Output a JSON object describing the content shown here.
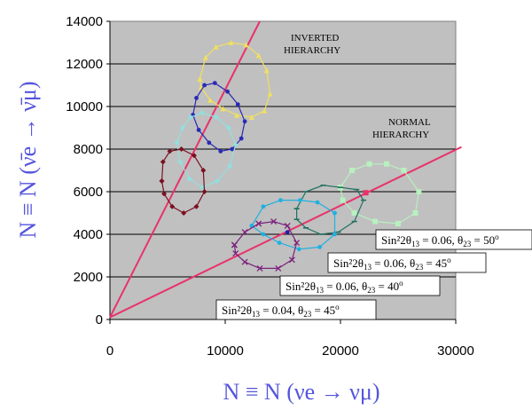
{
  "chart_data": {
    "type": "scatter",
    "xlim": [
      0,
      30000
    ],
    "ylim": [
      0,
      14000
    ],
    "x_ticks": [
      0,
      10000,
      20000,
      30000
    ],
    "y_ticks": [
      0,
      2000,
      4000,
      6000,
      8000,
      10000,
      12000,
      14000
    ],
    "grid": true,
    "plot_background": "#c0c0c0",
    "xlabel": "N ≡ N (νe → νμ)",
    "ylabel": "N ≡ N (ν̄e → ν̄μ)",
    "annotations": {
      "inverted": [
        "INVERTED",
        "HIERARCHY"
      ],
      "normal": [
        "NORMAL",
        "HIERARCHY"
      ]
    },
    "hierarchy_lines": [
      {
        "name": "inverted",
        "color": "#e8336a",
        "points": [
          [
            0,
            100
          ],
          [
            13000,
            14000
          ]
        ]
      },
      {
        "name": "normal",
        "color": "#e8336a",
        "points": [
          [
            0,
            100
          ],
          [
            30500,
            8100
          ]
        ]
      }
    ],
    "parameter_labels": [
      {
        "sin": "Sin²2θ",
        "sin_sub": "13",
        "sin_val": " = 0.06, θ",
        "th_sub": "23",
        "th_val": " = 50",
        "deg": "o"
      },
      {
        "sin": "Sin²2θ",
        "sin_sub": "13",
        "sin_val": " = 0.06, θ",
        "th_sub": "23",
        "th_val": " = 45",
        "deg": "o"
      },
      {
        "sin": "Sin²2θ",
        "sin_sub": "13",
        "sin_val": " = 0.06, θ",
        "th_sub": "23",
        "th_val": " = 40",
        "deg": "o"
      },
      {
        "sin": "Sin²2θ",
        "sin_sub": "13",
        "sin_val": " = 0.04, θ",
        "th_sub": "23",
        "th_val": " = 45",
        "deg": "o"
      }
    ],
    "series": [
      {
        "color": "#f0e060",
        "marker": "triangle",
        "points": [
          [
            7800,
            11300
          ],
          [
            8300,
            12300
          ],
          [
            9200,
            12800
          ],
          [
            10500,
            13000
          ],
          [
            11800,
            12900
          ],
          [
            12900,
            12400
          ],
          [
            13600,
            11700
          ],
          [
            13900,
            10600
          ],
          [
            13400,
            9800
          ],
          [
            12300,
            9500
          ],
          [
            11000,
            9600
          ],
          [
            9800,
            9900
          ],
          [
            8700,
            10300
          ],
          [
            7900,
            10900
          ],
          [
            7800,
            11300
          ]
        ]
      },
      {
        "color": "#2a2ab4",
        "marker": "dot",
        "points": [
          [
            7200,
            9600
          ],
          [
            7500,
            10400
          ],
          [
            8200,
            11000
          ],
          [
            9100,
            11100
          ],
          [
            10200,
            10700
          ],
          [
            11100,
            10100
          ],
          [
            11700,
            9300
          ],
          [
            11400,
            8500
          ],
          [
            10600,
            8000
          ],
          [
            9600,
            7900
          ],
          [
            8600,
            8300
          ],
          [
            7700,
            8900
          ],
          [
            7200,
            9600
          ]
        ]
      },
      {
        "color": "#90e0e0",
        "marker": "diamond",
        "points": [
          [
            5800,
            8300
          ],
          [
            6300,
            9000
          ],
          [
            7000,
            9500
          ],
          [
            8000,
            9700
          ],
          [
            9200,
            9500
          ],
          [
            10300,
            9000
          ],
          [
            10900,
            8200
          ],
          [
            10400,
            7200
          ],
          [
            9300,
            6500
          ],
          [
            8000,
            6200
          ],
          [
            6900,
            6600
          ],
          [
            6100,
            7400
          ],
          [
            5800,
            8300
          ]
        ]
      },
      {
        "color": "#7a1020",
        "marker": "diamond",
        "points": [
          [
            4500,
            6500
          ],
          [
            4600,
            7400
          ],
          [
            5200,
            7900
          ],
          [
            6200,
            8000
          ],
          [
            7300,
            7700
          ],
          [
            8100,
            7000
          ],
          [
            8200,
            6000
          ],
          [
            7500,
            5300
          ],
          [
            6400,
            5000
          ],
          [
            5400,
            5300
          ],
          [
            4700,
            5900
          ],
          [
            4500,
            6500
          ]
        ]
      },
      {
        "color": "#b8f0c0",
        "marker": "square",
        "points": [
          [
            20000,
            6200
          ],
          [
            21000,
            7000
          ],
          [
            22500,
            7300
          ],
          [
            24000,
            7300
          ],
          [
            25500,
            7000
          ],
          [
            26800,
            6000
          ],
          [
            26500,
            5000
          ],
          [
            25000,
            4500
          ],
          [
            23000,
            4600
          ],
          [
            21200,
            5000
          ],
          [
            20200,
            5600
          ],
          [
            20000,
            6200
          ]
        ]
      },
      {
        "color": "#1f7060",
        "marker": "dash",
        "points": [
          [
            16200,
            5200
          ],
          [
            17000,
            6000
          ],
          [
            18500,
            6300
          ],
          [
            20000,
            6200
          ],
          [
            21400,
            6100
          ],
          [
            22000,
            5600
          ],
          [
            21200,
            4600
          ],
          [
            19800,
            4100
          ],
          [
            18300,
            4000
          ],
          [
            17000,
            4300
          ],
          [
            16200,
            4700
          ],
          [
            16200,
            5200
          ]
        ]
      },
      {
        "color": "#20b0e0",
        "marker": "dot",
        "points": [
          [
            12300,
            4400
          ],
          [
            13300,
            5300
          ],
          [
            14800,
            5600
          ],
          [
            16500,
            5600
          ],
          [
            18000,
            5500
          ],
          [
            19500,
            5000
          ],
          [
            19500,
            4000
          ],
          [
            18200,
            3400
          ],
          [
            16400,
            3300
          ],
          [
            14700,
            3600
          ],
          [
            13300,
            4000
          ],
          [
            12300,
            4400
          ]
        ]
      },
      {
        "color": "#7a207a",
        "marker": "x",
        "points": [
          [
            10800,
            3500
          ],
          [
            11700,
            4100
          ],
          [
            12900,
            4500
          ],
          [
            14200,
            4600
          ],
          [
            15400,
            4400
          ],
          [
            16200,
            3600
          ],
          [
            15800,
            2800
          ],
          [
            14600,
            2400
          ],
          [
            13000,
            2400
          ],
          [
            11700,
            2700
          ],
          [
            10900,
            3100
          ],
          [
            10800,
            3500
          ]
        ]
      },
      {
        "color": "#2020b0",
        "marker": "dot",
        "points": [
          [
            15400,
            4100
          ]
        ]
      },
      {
        "color": "#e8336a",
        "marker": "square",
        "points": [
          [
            22200,
            5950
          ]
        ]
      }
    ]
  }
}
